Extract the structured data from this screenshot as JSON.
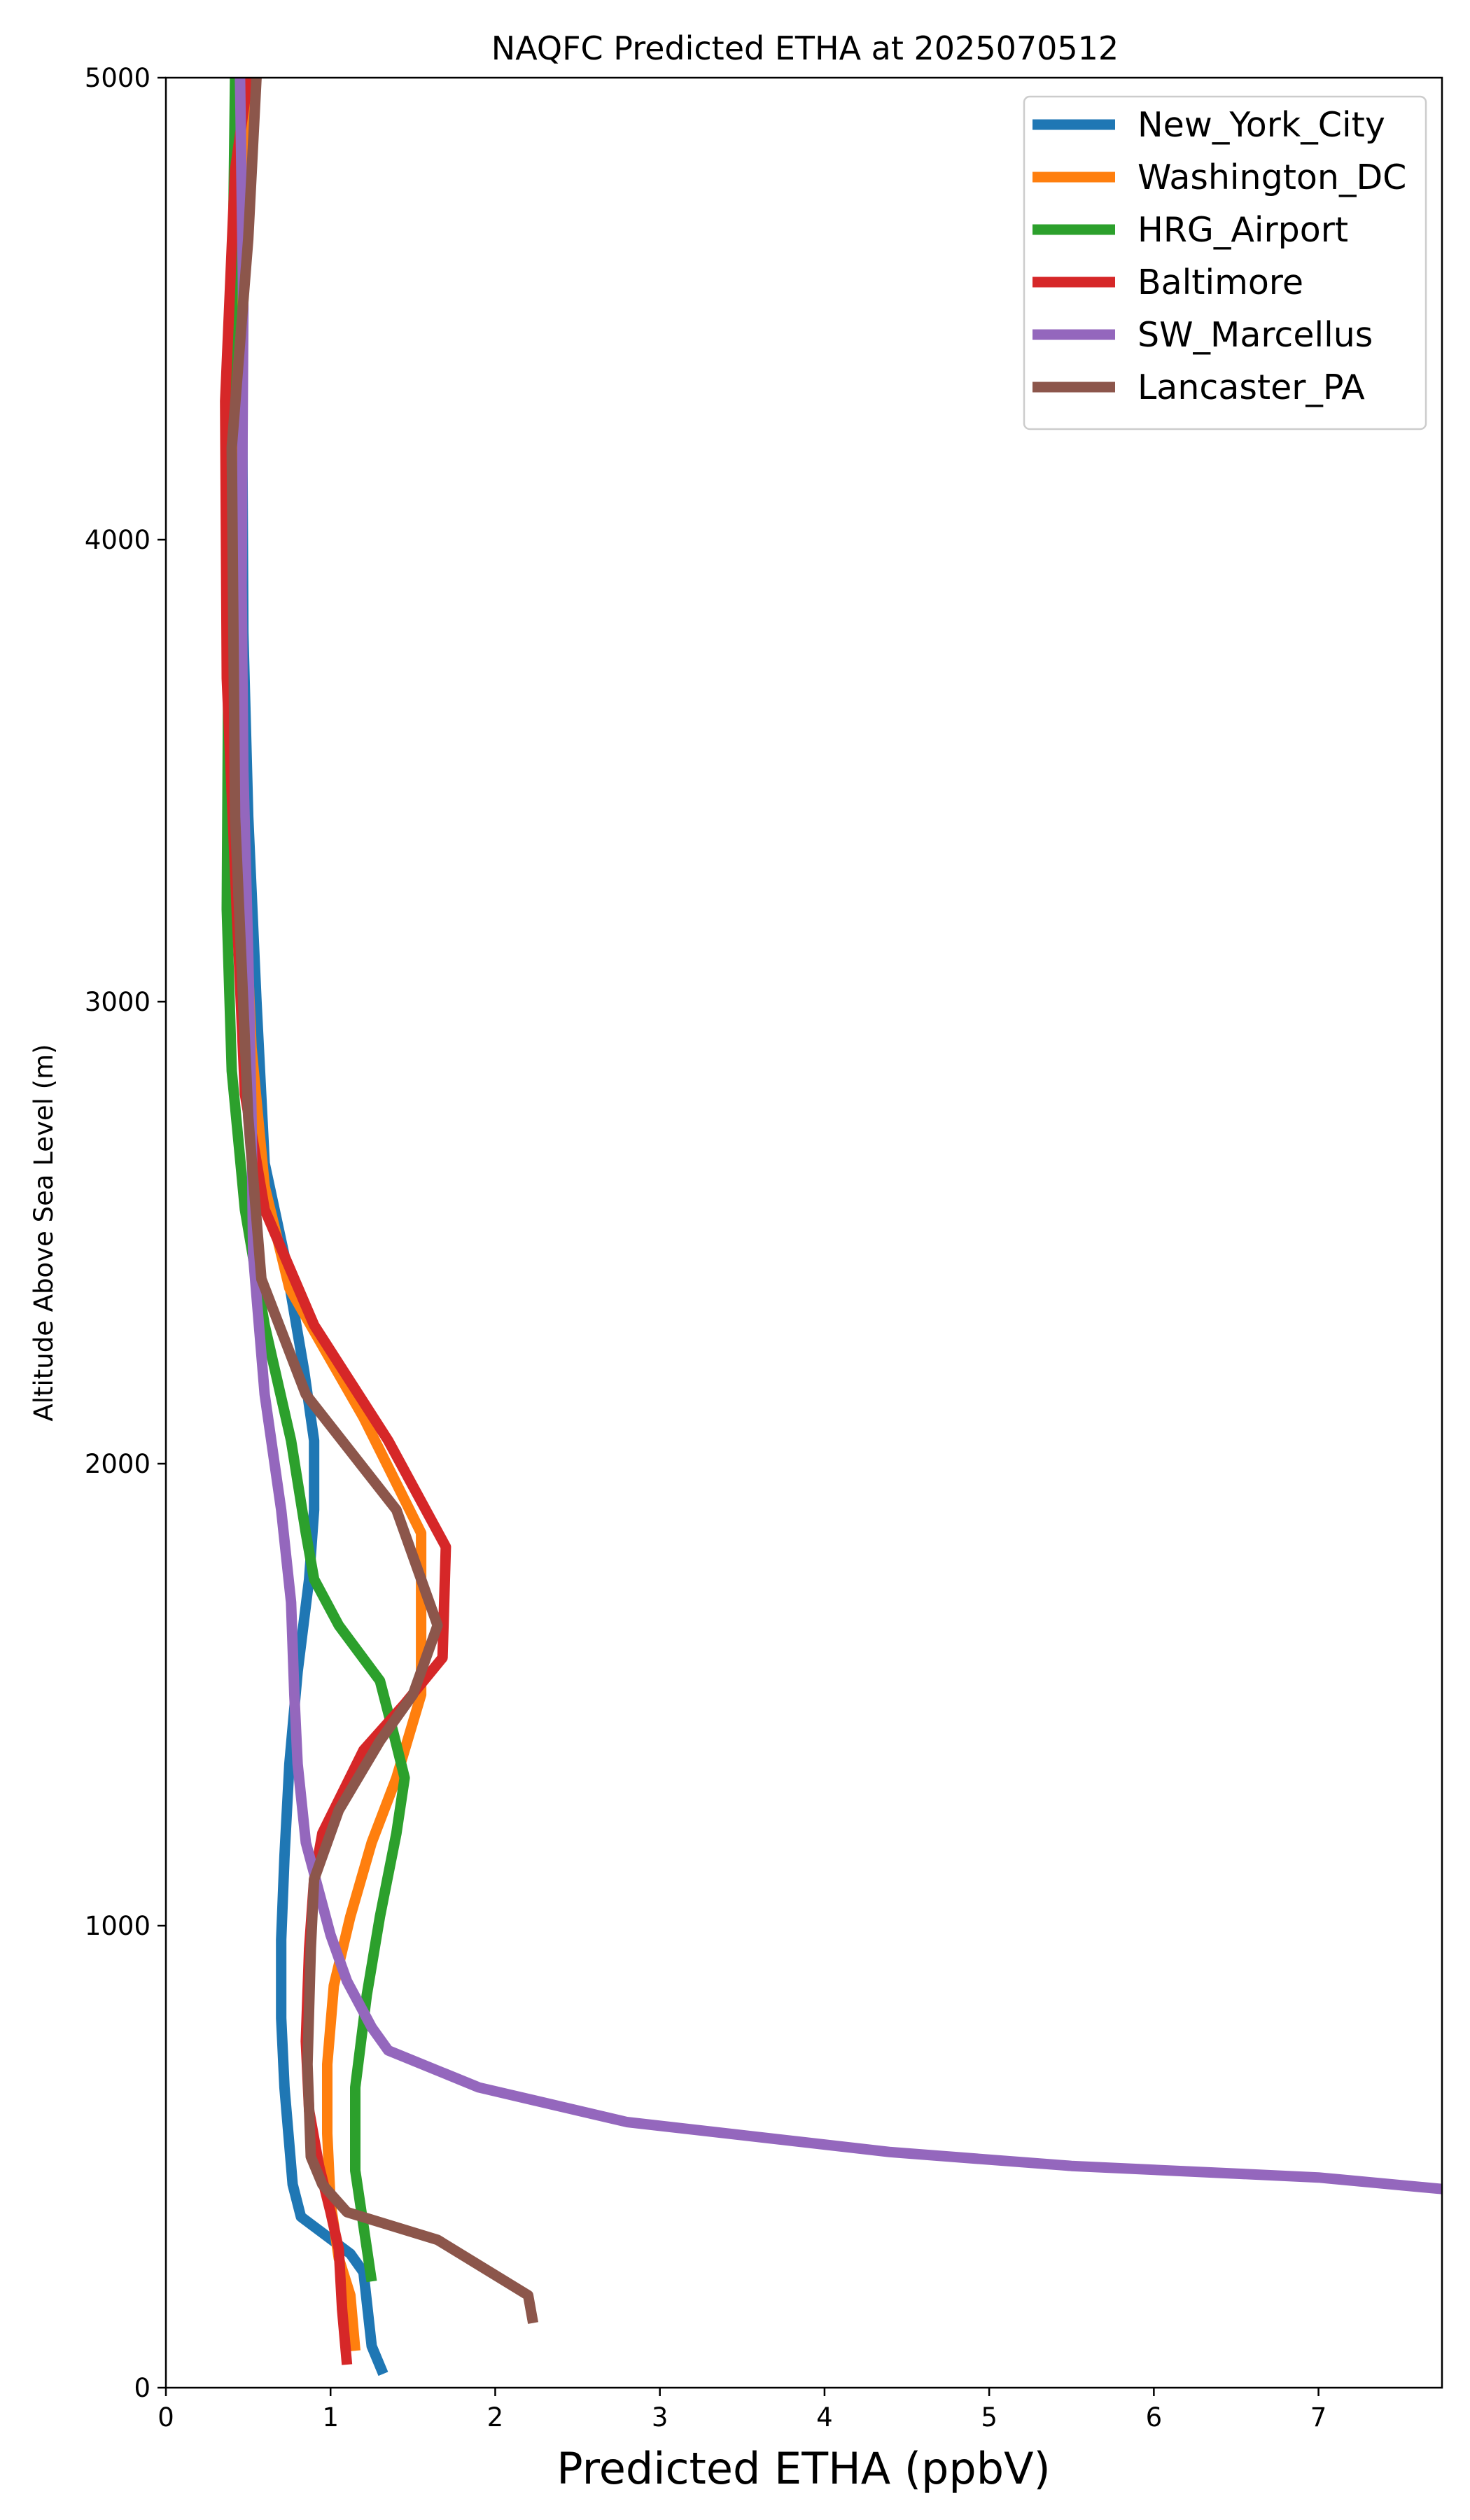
{
  "chart_data": {
    "type": "line",
    "title": "NAQFC Predicted ETHA at 2025070512",
    "xlabel": "Predicted ETHA (ppbV)",
    "ylabel": "Altitude Above Sea Level (m)",
    "xlim": [
      0,
      7.75
    ],
    "ylim": [
      0,
      5000
    ],
    "xticks": [
      0,
      1,
      2,
      3,
      4,
      5,
      6,
      7
    ],
    "yticks": [
      0,
      1000,
      2000,
      3000,
      4000,
      5000
    ],
    "legend_position": "top-right",
    "grid": false,
    "series": [
      {
        "name": "New_York_City",
        "color": "#1f77b4",
        "points": [
          [
            1.32,
            30
          ],
          [
            1.25,
            90
          ],
          [
            1.2,
            250
          ],
          [
            1.12,
            290
          ],
          [
            0.82,
            370
          ],
          [
            0.77,
            440
          ],
          [
            0.72,
            650
          ],
          [
            0.7,
            800
          ],
          [
            0.7,
            970
          ],
          [
            0.72,
            1150
          ],
          [
            0.75,
            1350
          ],
          [
            0.8,
            1550
          ],
          [
            0.87,
            1750
          ],
          [
            0.9,
            1900
          ],
          [
            0.9,
            2050
          ],
          [
            0.84,
            2200
          ],
          [
            0.72,
            2450
          ],
          [
            0.6,
            2650
          ],
          [
            0.55,
            3000
          ],
          [
            0.5,
            3400
          ],
          [
            0.47,
            3800
          ],
          [
            0.46,
            4500
          ],
          [
            0.47,
            5000
          ]
        ]
      },
      {
        "name": "Washington_DC",
        "color": "#ff7f0e",
        "points": [
          [
            1.15,
            80
          ],
          [
            1.12,
            200
          ],
          [
            1.05,
            280
          ],
          [
            1.0,
            400
          ],
          [
            0.98,
            550
          ],
          [
            0.98,
            700
          ],
          [
            1.02,
            870
          ],
          [
            1.12,
            1020
          ],
          [
            1.25,
            1180
          ],
          [
            1.4,
            1320
          ],
          [
            1.55,
            1500
          ],
          [
            1.55,
            1650
          ],
          [
            1.55,
            1850
          ],
          [
            1.2,
            2100
          ],
          [
            0.75,
            2380
          ],
          [
            0.6,
            2600
          ],
          [
            0.52,
            2900
          ],
          [
            0.46,
            3400
          ],
          [
            0.4,
            3900
          ],
          [
            0.42,
            4500
          ],
          [
            0.5,
            5000
          ]
        ]
      },
      {
        "name": "HRG_Airport",
        "color": "#2ca02c",
        "points": [
          [
            1.25,
            230
          ],
          [
            1.2,
            350
          ],
          [
            1.15,
            470
          ],
          [
            1.15,
            650
          ],
          [
            1.22,
            850
          ],
          [
            1.3,
            1020
          ],
          [
            1.4,
            1200
          ],
          [
            1.45,
            1320
          ],
          [
            1.38,
            1420
          ],
          [
            1.3,
            1530
          ],
          [
            1.05,
            1650
          ],
          [
            0.9,
            1750
          ],
          [
            0.85,
            1850
          ],
          [
            0.76,
            2050
          ],
          [
            0.6,
            2300
          ],
          [
            0.48,
            2550
          ],
          [
            0.4,
            2850
          ],
          [
            0.37,
            3200
          ],
          [
            0.38,
            3800
          ],
          [
            0.4,
            4400
          ],
          [
            0.42,
            5000
          ]
        ]
      },
      {
        "name": "Baltimore",
        "color": "#d62728",
        "points": [
          [
            1.1,
            50
          ],
          [
            1.07,
            170
          ],
          [
            1.05,
            300
          ],
          [
            1.0,
            380
          ],
          [
            0.93,
            480
          ],
          [
            0.87,
            600
          ],
          [
            0.85,
            750
          ],
          [
            0.87,
            950
          ],
          [
            0.9,
            1100
          ],
          [
            0.95,
            1200
          ],
          [
            1.2,
            1380
          ],
          [
            1.45,
            1480
          ],
          [
            1.68,
            1580
          ],
          [
            1.7,
            1820
          ],
          [
            1.35,
            2050
          ],
          [
            0.9,
            2300
          ],
          [
            0.6,
            2550
          ],
          [
            0.48,
            2800
          ],
          [
            0.43,
            3200
          ],
          [
            0.37,
            3700
          ],
          [
            0.36,
            4300
          ],
          [
            0.42,
            4800
          ],
          [
            0.5,
            5000
          ]
        ]
      },
      {
        "name": "SW_Marcellus",
        "color": "#9467bd",
        "points": [
          [
            7.75,
            430
          ],
          [
            7.0,
            455
          ],
          [
            5.5,
            480
          ],
          [
            4.4,
            510
          ],
          [
            2.8,
            575
          ],
          [
            1.9,
            650
          ],
          [
            1.35,
            730
          ],
          [
            1.25,
            780
          ],
          [
            1.1,
            880
          ],
          [
            1.0,
            980
          ],
          [
            0.85,
            1180
          ],
          [
            0.8,
            1350
          ],
          [
            0.78,
            1500
          ],
          [
            0.76,
            1700
          ],
          [
            0.7,
            1900
          ],
          [
            0.6,
            2150
          ],
          [
            0.53,
            2450
          ],
          [
            0.52,
            2750
          ],
          [
            0.5,
            3100
          ],
          [
            0.47,
            3500
          ],
          [
            0.46,
            3900
          ],
          [
            0.47,
            4500
          ],
          [
            0.45,
            5000
          ]
        ]
      },
      {
        "name": "Lancaster_PA",
        "color": "#8c564b",
        "points": [
          [
            2.23,
            140
          ],
          [
            2.2,
            200
          ],
          [
            1.65,
            320
          ],
          [
            1.1,
            380
          ],
          [
            0.95,
            440
          ],
          [
            0.88,
            500
          ],
          [
            0.86,
            700
          ],
          [
            0.88,
            950
          ],
          [
            0.9,
            1100
          ],
          [
            1.05,
            1250
          ],
          [
            1.3,
            1400
          ],
          [
            1.5,
            1500
          ],
          [
            1.65,
            1650
          ],
          [
            1.4,
            1900
          ],
          [
            0.85,
            2150
          ],
          [
            0.58,
            2400
          ],
          [
            0.5,
            2750
          ],
          [
            0.42,
            3400
          ],
          [
            0.4,
            4200
          ],
          [
            0.5,
            4650
          ],
          [
            0.55,
            5000
          ]
        ]
      }
    ]
  }
}
